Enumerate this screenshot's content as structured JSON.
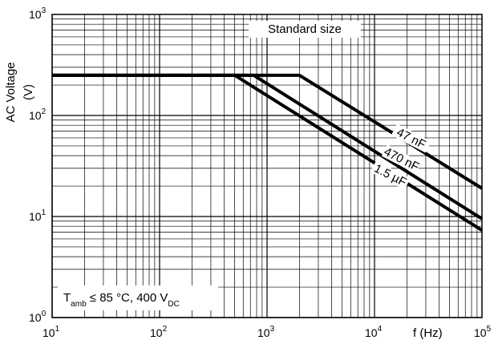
{
  "chart_data": {
    "type": "line",
    "title": "Standard size",
    "xlabel": "f (Hz)",
    "ylabel": "AC Voltage (V)",
    "ylabel_line1": "AC Voltage",
    "ylabel_line2": "(V)",
    "xscale": "log",
    "yscale": "log",
    "xlim": [
      10,
      100000
    ],
    "ylim": [
      1,
      1000
    ],
    "grid": true,
    "x_ticks": [
      {
        "value": 10,
        "base": "10",
        "exp": "1"
      },
      {
        "value": 100,
        "base": "10",
        "exp": "2"
      },
      {
        "value": 1000,
        "base": "10",
        "exp": "3"
      },
      {
        "value": 10000,
        "base": "10",
        "exp": "4"
      },
      {
        "value": 100000,
        "base": "10",
        "exp": "5"
      }
    ],
    "y_ticks": [
      {
        "value": 1,
        "base": "10",
        "exp": "0"
      },
      {
        "value": 10,
        "base": "10",
        "exp": "1"
      },
      {
        "value": 100,
        "base": "10",
        "exp": "2"
      },
      {
        "value": 1000,
        "base": "10",
        "exp": "3"
      }
    ],
    "series": [
      {
        "name": "47 nF",
        "x": [
          10,
          2000,
          100000
        ],
        "y": [
          250,
          250,
          19
        ]
      },
      {
        "name": "470 nF",
        "x": [
          10,
          750,
          100000
        ],
        "y": [
          250,
          250,
          9.5
        ]
      },
      {
        "name": "1.5 µF",
        "x": [
          10,
          500,
          100000
        ],
        "y": [
          250,
          250,
          7.3
        ]
      }
    ],
    "annotation": {
      "t": "T",
      "t_sub": "amb",
      "mid": " ≤ 85 °C, 400 V",
      "v_sub": "DC"
    }
  }
}
